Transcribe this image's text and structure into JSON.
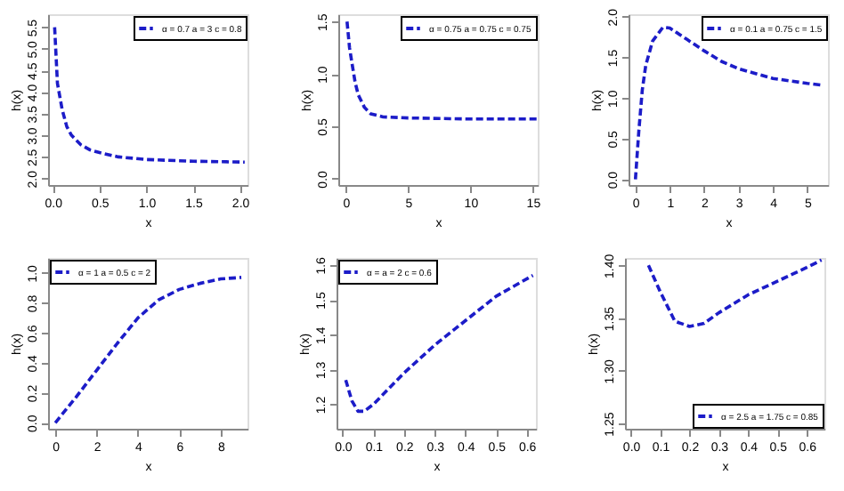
{
  "chart_data": [
    {
      "type": "line",
      "xlabel": "x",
      "ylabel": "h(x)",
      "xlim": [
        -0.05,
        2.08
      ],
      "ylim": [
        1.85,
        5.8
      ],
      "xticks": [
        {
          "value": 0,
          "label": "0.0"
        },
        0.5,
        {
          "value": 1,
          "label": "1.0"
        },
        1.5,
        {
          "value": 2,
          "label": "2.0"
        }
      ],
      "yticks": [
        {
          "value": 2,
          "label": "2.0"
        },
        2.5,
        {
          "value": 3,
          "label": "3.0"
        },
        3.5,
        {
          "value": 4,
          "label": "4.0"
        },
        4.5,
        {
          "value": 5,
          "label": "5.0"
        },
        5.5
      ],
      "grid": false,
      "legend": "top right",
      "line_style": "dashed",
      "marker": "none",
      "series": [
        {
          "name": "α = 0.7 a = 3 c = 0.8",
          "color": "#1c1cc8",
          "x": [
            0.02,
            0.05,
            0.1,
            0.15,
            0.2,
            0.25,
            0.3,
            0.4,
            0.5,
            0.7,
            1.0,
            1.5,
            2.05
          ],
          "values": [
            5.5,
            4.2,
            3.6,
            3.2,
            3.0,
            2.89,
            2.78,
            2.66,
            2.6,
            2.5,
            2.44,
            2.4,
            2.38
          ]
        }
      ]
    },
    {
      "type": "line",
      "xlabel": "x",
      "ylabel": "h(x)",
      "xlim": [
        -0.6,
        15.4
      ],
      "ylim": [
        -0.06,
        1.57
      ],
      "xticks": [
        0,
        5,
        10,
        15
      ],
      "yticks": [
        {
          "value": 0,
          "label": "0.0"
        },
        0.5,
        {
          "value": 1,
          "label": "1.0"
        },
        1.5
      ],
      "grid": false,
      "legend": "top right",
      "line_style": "dashed",
      "marker": "none",
      "series": [
        {
          "name": "α = 0.75 a = 0.75 c = 0.75",
          "color": "#1c1cc8",
          "x": [
            0.1,
            0.3,
            0.5,
            0.75,
            1,
            1.5,
            2,
            3,
            5,
            10,
            15.4
          ],
          "values": [
            1.5,
            1.25,
            1.1,
            0.92,
            0.8,
            0.68,
            0.62,
            0.59,
            0.58,
            0.57,
            0.57
          ]
        }
      ]
    },
    {
      "type": "line",
      "xlabel": "x",
      "ylabel": "h(x)",
      "xlim": [
        -0.2,
        5.6
      ],
      "ylim": [
        -0.07,
        2.03
      ],
      "xticks": [
        0,
        1,
        2,
        3,
        4,
        5
      ],
      "yticks": [
        {
          "value": 0,
          "label": "0.0"
        },
        0.5,
        {
          "value": 1,
          "label": "1.0"
        },
        1.5,
        {
          "value": 2,
          "label": "2.0"
        }
      ],
      "grid": false,
      "legend": "top right",
      "line_style": "dashed",
      "marker": "none",
      "series": [
        {
          "name": "α = 0.1 a = 0.75 c = 1.5",
          "color": "#1c1cc8",
          "x": [
            0,
            0.1,
            0.2,
            0.3,
            0.5,
            0.8,
            1.0,
            1.5,
            2,
            2.5,
            3,
            4,
            5,
            5.4
          ],
          "values": [
            0,
            0.6,
            1.1,
            1.4,
            1.7,
            1.87,
            1.86,
            1.72,
            1.58,
            1.45,
            1.36,
            1.24,
            1.18,
            1.16
          ]
        }
      ]
    },
    {
      "type": "line",
      "xlabel": "x",
      "ylabel": "h(x)",
      "xlim": [
        -0.35,
        9.3
      ],
      "ylim": [
        -0.04,
        1.1
      ],
      "xticks": [
        0,
        2,
        4,
        6,
        8
      ],
      "yticks": [
        {
          "value": 0,
          "label": "0.0"
        },
        0.2,
        0.4,
        0.6,
        0.8,
        {
          "value": 1,
          "label": "1.0"
        }
      ],
      "grid": false,
      "legend": "top left",
      "line_style": "dashed",
      "marker": "none",
      "series": [
        {
          "name": "α = 1 a = 0.5 c = 2",
          "color": "#1c1cc8",
          "x": [
            0,
            1,
            2,
            3,
            4,
            5,
            6,
            7,
            8,
            9
          ],
          "values": [
            0,
            0.17,
            0.35,
            0.53,
            0.7,
            0.82,
            0.89,
            0.93,
            0.96,
            0.97
          ]
        }
      ]
    },
    {
      "type": "line",
      "xlabel": "x",
      "ylabel": "h(x)",
      "xlim": [
        -0.02,
        0.63
      ],
      "ylim": [
        1.13,
        1.62
      ],
      "xticks": [
        {
          "value": 0,
          "label": "0.0"
        },
        0.1,
        0.2,
        0.3,
        0.4,
        0.5,
        0.6
      ],
      "yticks": [
        1.2,
        1.3,
        1.4,
        1.5,
        1.6
      ],
      "grid": false,
      "legend": "top left",
      "line_style": "dashed",
      "marker": "none",
      "series": [
        {
          "name": "α = a = 2 c = 0.6",
          "color": "#1c1cc8",
          "x": [
            0.01,
            0.03,
            0.05,
            0.07,
            0.1,
            0.2,
            0.3,
            0.4,
            0.5,
            0.62
          ],
          "values": [
            1.27,
            1.21,
            1.18,
            1.18,
            1.2,
            1.29,
            1.37,
            1.44,
            1.51,
            1.57
          ]
        }
      ]
    },
    {
      "type": "line",
      "xlabel": "x",
      "ylabel": "h(x)",
      "xlim": [
        -0.02,
        0.66
      ],
      "ylim": [
        1.245,
        1.407
      ],
      "xticks": [
        {
          "value": 0,
          "label": "0.0"
        },
        0.1,
        0.2,
        0.3,
        0.4,
        0.5,
        0.6
      ],
      "yticks": [
        1.25,
        {
          "value": 1.3,
          "label": "1.30"
        },
        1.35,
        {
          "value": 1.4,
          "label": "1.40"
        }
      ],
      "grid": false,
      "legend": "bottom right",
      "line_style": "dashed",
      "marker": "none",
      "series": [
        {
          "name": "α = 2.5 a = 1.75 c = 0.85",
          "color": "#1c1cc8",
          "x": [
            0.06,
            0.1,
            0.15,
            0.2,
            0.25,
            0.3,
            0.4,
            0.5,
            0.6,
            0.65
          ],
          "values": [
            1.4,
            1.375,
            1.347,
            1.342,
            1.345,
            1.355,
            1.372,
            1.385,
            1.398,
            1.405
          ]
        }
      ]
    }
  ]
}
